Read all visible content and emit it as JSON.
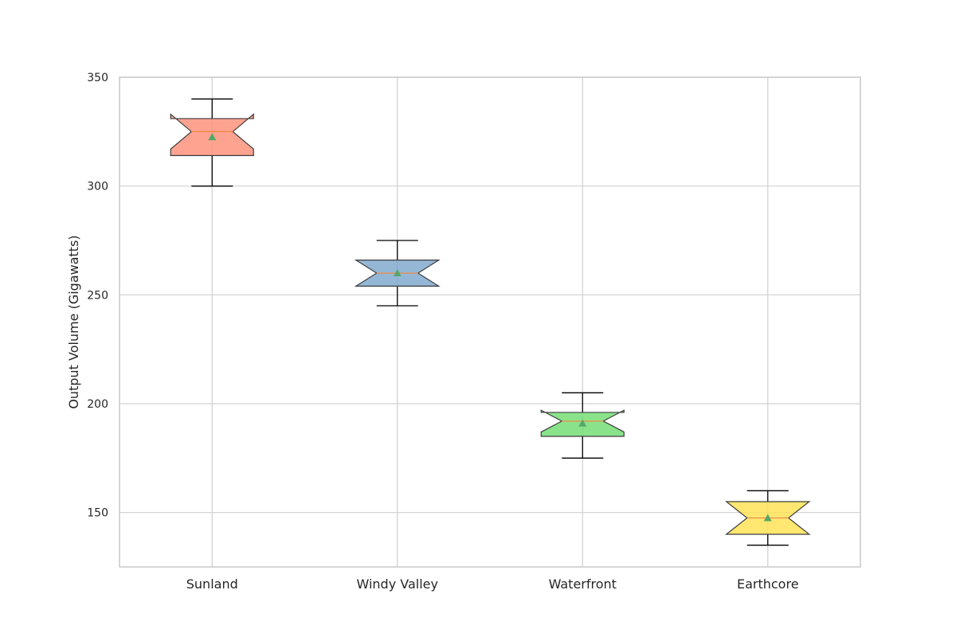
{
  "chart_data": {
    "type": "box",
    "title": "",
    "xlabel": "",
    "ylabel": "Output Volume (Gigawatts)",
    "ylim": [
      125,
      350
    ],
    "yticks": [
      150,
      200,
      250,
      300,
      350
    ],
    "grid": true,
    "notched": true,
    "show_means": true,
    "categories": [
      "Sunland",
      "Windy Valley",
      "Waterfront",
      "Earthcore"
    ],
    "boxes": [
      {
        "category": "Sunland",
        "whisker_low": 300,
        "q1": 314,
        "median": 325,
        "q3": 331,
        "whisker_high": 340,
        "mean": 322.5,
        "notch_low": 317,
        "notch_high": 333,
        "color": "#ff8c75"
      },
      {
        "category": "Windy Valley",
        "whisker_low": 245,
        "q1": 254,
        "median": 260,
        "q3": 266,
        "whisker_high": 275,
        "mean": 260,
        "notch_low": 254,
        "notch_high": 266,
        "color": "#7aa5cc"
      },
      {
        "category": "Waterfront",
        "whisker_low": 175,
        "q1": 185,
        "median": 192,
        "q3": 196,
        "whisker_high": 205,
        "mean": 191,
        "notch_low": 187,
        "notch_high": 197,
        "color": "#6ddc6d"
      },
      {
        "category": "Earthcore",
        "whisker_low": 135,
        "q1": 140,
        "median": 147.5,
        "q3": 155,
        "whisker_high": 160,
        "mean": 147.5,
        "notch_low": 140,
        "notch_high": 155,
        "color": "#ffe14d"
      }
    ],
    "median_color": "#f08a48",
    "mean_marker_color": "#55a868"
  }
}
